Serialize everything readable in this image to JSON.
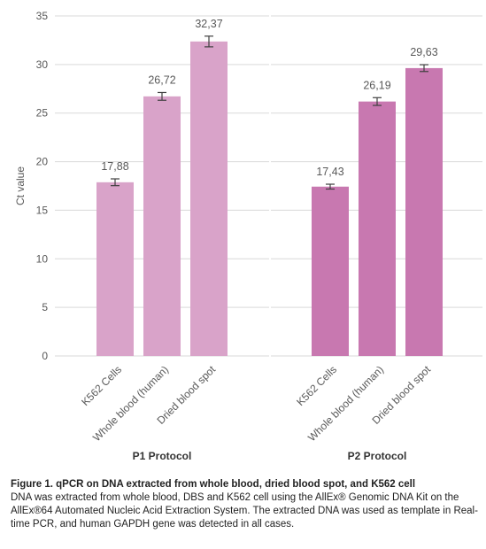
{
  "chart_data": {
    "type": "bar",
    "ylabel": "Ct value",
    "ylim": [
      0,
      35
    ],
    "yticks": [
      0,
      5,
      10,
      15,
      20,
      25,
      30,
      35
    ],
    "grid": true,
    "groups": [
      {
        "name": "P1 Protocol",
        "color": "#d9a3c9",
        "categories": [
          "K562 Cells",
          "Whole blood (human)",
          "Dried blood spot"
        ],
        "values": [
          17.88,
          26.72,
          32.37
        ],
        "labels": [
          "17,88",
          "26,72",
          "32,37"
        ],
        "errors": [
          0.35,
          0.4,
          0.55
        ]
      },
      {
        "name": "P2 Protocol",
        "color": "#c878b0",
        "categories": [
          "K562 Cells",
          "Whole blood (human)",
          "Dried blood spot"
        ],
        "values": [
          17.43,
          26.19,
          29.63
        ],
        "labels": [
          "17,43",
          "26,19",
          "29,63"
        ],
        "errors": [
          0.25,
          0.4,
          0.35
        ]
      }
    ]
  },
  "caption": {
    "title": "Figure 1. qPCR on DNA extracted from whole blood, dried blood spot, and K562 cell",
    "body": "DNA was extracted from whole blood, DBS and K562 cell using the AllEx® Genomic DNA Kit on the AllEx®64 Automated Nucleic Acid Extraction System. The extracted DNA was used as template in Real-time PCR, and human GAPDH gene was detected in all cases."
  }
}
